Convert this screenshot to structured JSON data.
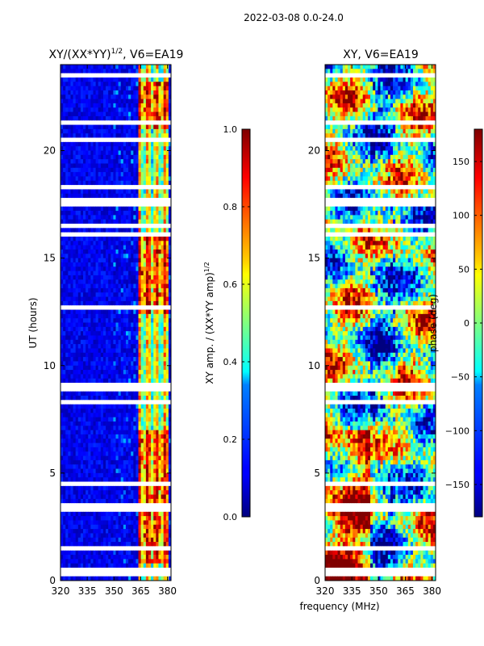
{
  "figure": {
    "suptitle": "2022-03-08 0.0-24.0",
    "xlabel": "frequency (MHz)"
  },
  "chart_data": [
    {
      "type": "heatmap",
      "title": "XY/(XX*YY)",
      "title_exponent": "1/2",
      "title_suffix": ", V6=EA19",
      "xlabel": "",
      "ylabel": "UT (hours)",
      "xlim": [
        320,
        382
      ],
      "ylim": [
        0,
        24
      ],
      "x_ticks": [
        320,
        335,
        350,
        365,
        380
      ],
      "y_ticks": [
        0,
        5,
        10,
        15,
        20
      ],
      "colorbar": {
        "label": "XY amp. / (XX*YY amp)",
        "label_exponent": "1/2",
        "range": [
          0.0,
          1.0
        ],
        "ticks": [
          "0.0",
          "0.2",
          "0.4",
          "0.6",
          "0.8",
          "1.0"
        ],
        "colormap": "jet"
      },
      "features": {
        "high_amplitude_band_MHz": [
          363,
          380
        ],
        "high_amplitude_hours": [
          [
            0.8,
            7.0
          ],
          [
            12.5,
            16.0
          ],
          [
            21.0,
            23.2
          ]
        ],
        "background_amplitude": 0.05,
        "flagged_hours": [
          0.3,
          0.5,
          1.5,
          2.0,
          2.4,
          2.8,
          3.3,
          3.5,
          4.5,
          5.0,
          5.2,
          7.6,
          7.8,
          8.3,
          8.6,
          8.9,
          9.1,
          9.8,
          10.0,
          11.0,
          12.4,
          12.7,
          13.0,
          13.8,
          14.0,
          15.8,
          16.1,
          16.5,
          17.2,
          17.5,
          17.7,
          18.0,
          18.3,
          19.2,
          20.5,
          21.3,
          22.8,
          23.0,
          23.5
        ]
      }
    },
    {
      "type": "heatmap",
      "title": "XY, V6=EA19",
      "xlabel": "",
      "ylabel": "",
      "xlim": [
        320,
        382
      ],
      "ylim": [
        0,
        24
      ],
      "x_ticks": [
        320,
        335,
        350,
        365,
        380
      ],
      "y_ticks": [
        0,
        5,
        10,
        15,
        20
      ],
      "colorbar": {
        "label": "phase (deg)",
        "range": [
          -180,
          180
        ],
        "ticks": [
          "−150",
          "−100",
          "−50",
          "0",
          "50",
          "100",
          "150"
        ],
        "colormap": "jet"
      },
      "features": {
        "phase_range_deg": [
          -180,
          180
        ],
        "flagged_hours": [
          0.3,
          0.5,
          1.5,
          2.0,
          2.4,
          2.8,
          3.3,
          3.5,
          4.5,
          5.0,
          5.2,
          7.6,
          7.8,
          8.3,
          8.6,
          8.9,
          9.1,
          9.8,
          10.0,
          11.0,
          12.4,
          12.7,
          13.0,
          13.8,
          14.0,
          15.8,
          16.1,
          16.5,
          17.2,
          17.5,
          17.7,
          18.0,
          18.3,
          19.2,
          20.5,
          21.3,
          22.8,
          23.0,
          23.5
        ]
      }
    }
  ]
}
